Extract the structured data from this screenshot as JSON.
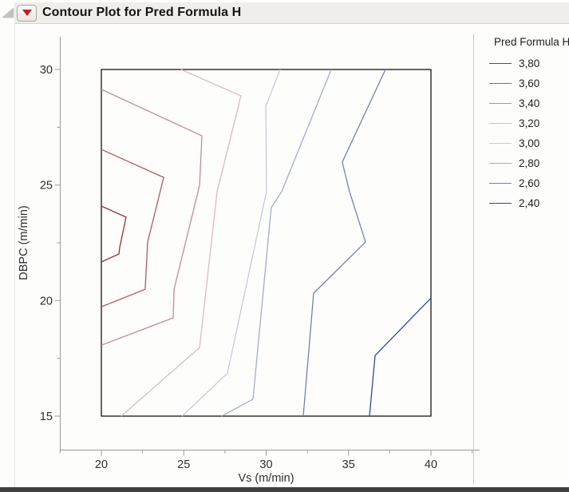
{
  "header": {
    "title": "Contour Plot for Pred Formula H",
    "menu_button_color": "#c02020"
  },
  "chart_data": {
    "type": "contour",
    "title": "Contour Plot for Pred Formula H",
    "xlabel": "Vs (m/min)",
    "ylabel": "DBPC (m/min)",
    "xlim": [
      17.5,
      43
    ],
    "ylim": [
      13.6,
      31.4
    ],
    "frame_x": [
      20,
      40
    ],
    "frame_y": [
      15,
      30
    ],
    "x_major_ticks": [
      20,
      25,
      30,
      35,
      40
    ],
    "x_minor_ticks": [
      17.5,
      22.5,
      27.5,
      32.5,
      37.5,
      42.5
    ],
    "y_major_ticks": [
      30,
      25,
      20,
      15
    ],
    "y_minor_ticks": [
      27.5,
      22.5,
      17.5
    ],
    "grid": false,
    "legend_title": "Pred Formula H",
    "legend_position": "right",
    "decimal_separator": ",",
    "response_name": "Pred Formula H",
    "contours": [
      {
        "level": 3.8,
        "label": "3,80",
        "color": "#9c2f39",
        "points": [
          [
            20,
            24.09
          ],
          [
            21.5,
            23.61
          ],
          [
            21.11,
            22.29
          ],
          [
            21.07,
            22.02
          ],
          [
            20,
            21.67
          ]
        ]
      },
      {
        "level": 3.6,
        "label": "3,60",
        "color": "#b25861",
        "points": [
          [
            20,
            26.54
          ],
          [
            23.78,
            25.33
          ],
          [
            22.81,
            22.53
          ],
          [
            22.66,
            20.49
          ],
          [
            20,
            19.73
          ]
        ]
      },
      {
        "level": 3.4,
        "label": "3,40",
        "color": "#c68a92",
        "points": [
          [
            20,
            29.14
          ],
          [
            26.1,
            27.13
          ],
          [
            25.96,
            24.99
          ],
          [
            24.41,
            20.49
          ],
          [
            24.36,
            19.25
          ],
          [
            20,
            18.07
          ]
        ]
      },
      {
        "level": 3.2,
        "label": "3,20",
        "color": "#d9bcc0",
        "points": [
          [
            24.84,
            30
          ],
          [
            28.47,
            28.86
          ],
          [
            27.02,
            24.71
          ],
          [
            25.96,
            17.97
          ],
          [
            21.2,
            15
          ]
        ]
      },
      {
        "level": 3.0,
        "label": "3,00",
        "color": "#c9cbdb",
        "points": [
          [
            30.85,
            30
          ],
          [
            29.98,
            28.41
          ],
          [
            30.02,
            24.71
          ],
          [
            27.65,
            16.86
          ],
          [
            24.9,
            15
          ]
        ]
      },
      {
        "level": 2.8,
        "label": "2,80",
        "color": "#a3abcc",
        "points": [
          [
            33.95,
            30
          ],
          [
            30.94,
            24.71
          ],
          [
            30.31,
            24.02
          ],
          [
            29.2,
            15.73
          ],
          [
            27.3,
            15
          ]
        ]
      },
      {
        "level": 2.6,
        "label": "2,60",
        "color": "#7380b4",
        "points": [
          [
            37.24,
            30
          ],
          [
            34.62,
            25.99
          ],
          [
            35.06,
            24.71
          ],
          [
            36.03,
            22.53
          ],
          [
            32.88,
            20.32
          ],
          [
            32.25,
            15
          ]
        ]
      },
      {
        "level": 2.4,
        "label": "2,40",
        "color": "#34499b",
        "points": [
          [
            40,
            20.11
          ],
          [
            36.61,
            17.62
          ],
          [
            36.27,
            15
          ]
        ]
      }
    ]
  }
}
